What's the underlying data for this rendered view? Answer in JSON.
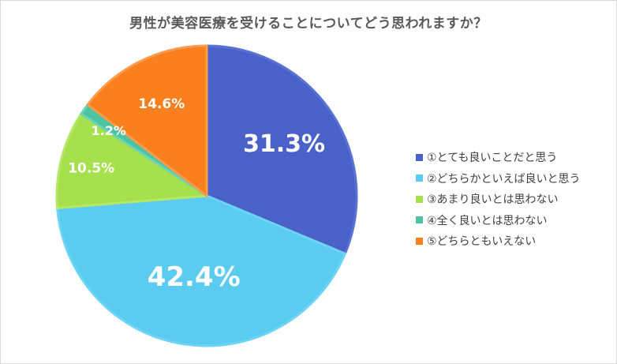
{
  "chart_data": {
    "type": "pie",
    "title": "男性が美容医療を受けることについてどう思われますか？",
    "categories": [
      "①とても良いことだと思う",
      "②どちらかといえば良いと思う",
      "③あまり良いとは思わない",
      "④全く良いとは思わない",
      "⑤どちらともいえない"
    ],
    "values": [
      31.3,
      42.4,
      10.5,
      1.2,
      14.6
    ],
    "data_labels": [
      "31.3%",
      "42.4%",
      "10.5%",
      "1.2%",
      "14.6%"
    ],
    "colors": [
      "#4a62c8",
      "#5ccbf0",
      "#a6e04c",
      "#4cc4a2",
      "#fa7f1e"
    ],
    "edge_colors": [
      "#5a72d4",
      "#6cd4f4",
      "#b4e866",
      "#6ad4b4",
      "#ff9a4a"
    ],
    "label_colors": [
      "#ffffff",
      "#ffffff",
      "#ffffff",
      "#595959",
      "#ffffff"
    ],
    "legend_position": "right",
    "start_angle": "12 o'clock",
    "direction": "clockwise"
  }
}
